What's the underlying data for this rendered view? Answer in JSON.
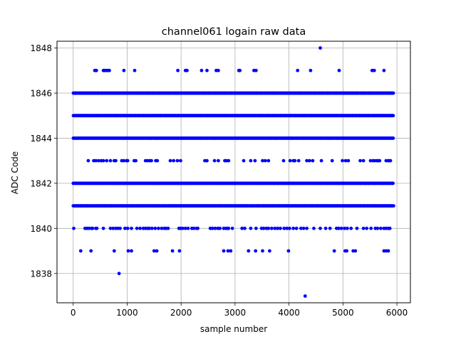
{
  "chart_data": {
    "type": "scatter",
    "title": "channel061 logain raw data",
    "xlabel": "sample number",
    "ylabel": "ADC Code",
    "xlim": [
      -300,
      6250
    ],
    "ylim": [
      1836.7,
      1848.3
    ],
    "xticks": [
      0,
      1000,
      2000,
      3000,
      4000,
      5000,
      6000
    ],
    "yticks": [
      1838,
      1840,
      1842,
      1844,
      1846,
      1848
    ],
    "grid": true,
    "marker_color": "#0000ff",
    "n_samples": 5940,
    "dense_levels": [
      1841,
      1842,
      1844,
      1845,
      1846
    ],
    "sparse_levels": {
      "1847": [
        400,
        430,
        560,
        580,
        610,
        640,
        670,
        940,
        1140,
        1940,
        2080,
        2110,
        2380,
        2480,
        2650,
        2690,
        3070,
        3090,
        3350,
        3390,
        4160,
        4400,
        4930,
        5540,
        5580,
        5760
      ],
      "1843": [
        280,
        380,
        420,
        470,
        520,
        560,
        620,
        690,
        760,
        790,
        900,
        940,
        990,
        1010,
        1130,
        1160,
        1340,
        1380,
        1420,
        1450,
        1530,
        1560,
        1800,
        1860,
        1930,
        1990,
        2440,
        2480,
        2620,
        2690,
        2810,
        2840,
        2880,
        3160,
        3290,
        3370,
        3510,
        3560,
        3620,
        3900,
        4020,
        4080,
        4110,
        4180,
        4330,
        4380,
        4440,
        4600,
        4800,
        4990,
        5050,
        5100,
        5320,
        5380,
        5510,
        5560,
        5590,
        5630,
        5650,
        5680,
        5800,
        5840,
        5850,
        5880
      ],
      "1840": [
        10,
        220,
        260,
        300,
        340,
        360,
        420,
        440,
        560,
        690,
        740,
        790,
        830,
        870,
        960,
        1010,
        1080,
        1180,
        1240,
        1300,
        1340,
        1380,
        1410,
        1460,
        1520,
        1580,
        1640,
        1690,
        1720,
        1760,
        1960,
        1990,
        2030,
        2080,
        2130,
        2200,
        2240,
        2290,
        2310,
        2540,
        2580,
        2630,
        2680,
        2720,
        2790,
        2830,
        2860,
        2880,
        2950,
        3130,
        3180,
        3290,
        3390,
        3490,
        3530,
        3580,
        3620,
        3680,
        3740,
        3790,
        3840,
        3910,
        3960,
        4010,
        4080,
        4140,
        4220,
        4270,
        4330,
        4460,
        4580,
        4680,
        4760,
        4880,
        4920,
        4970,
        5030,
        5080,
        5150,
        5260,
        5380,
        5440,
        5520,
        5600,
        5640,
        5700,
        5760,
        5800,
        5840,
        5870
      ],
      "1839": [
        140,
        330,
        760,
        1020,
        1080,
        1500,
        1550,
        1840,
        1970,
        2790,
        2870,
        2920,
        3250,
        3380,
        3510,
        3640,
        3990,
        4840,
        5040,
        5070,
        5190,
        5230,
        5760,
        5800,
        5840
      ],
      "1848": [
        4580
      ],
      "1838": [
        850
      ],
      "1837": [
        4300
      ]
    }
  }
}
